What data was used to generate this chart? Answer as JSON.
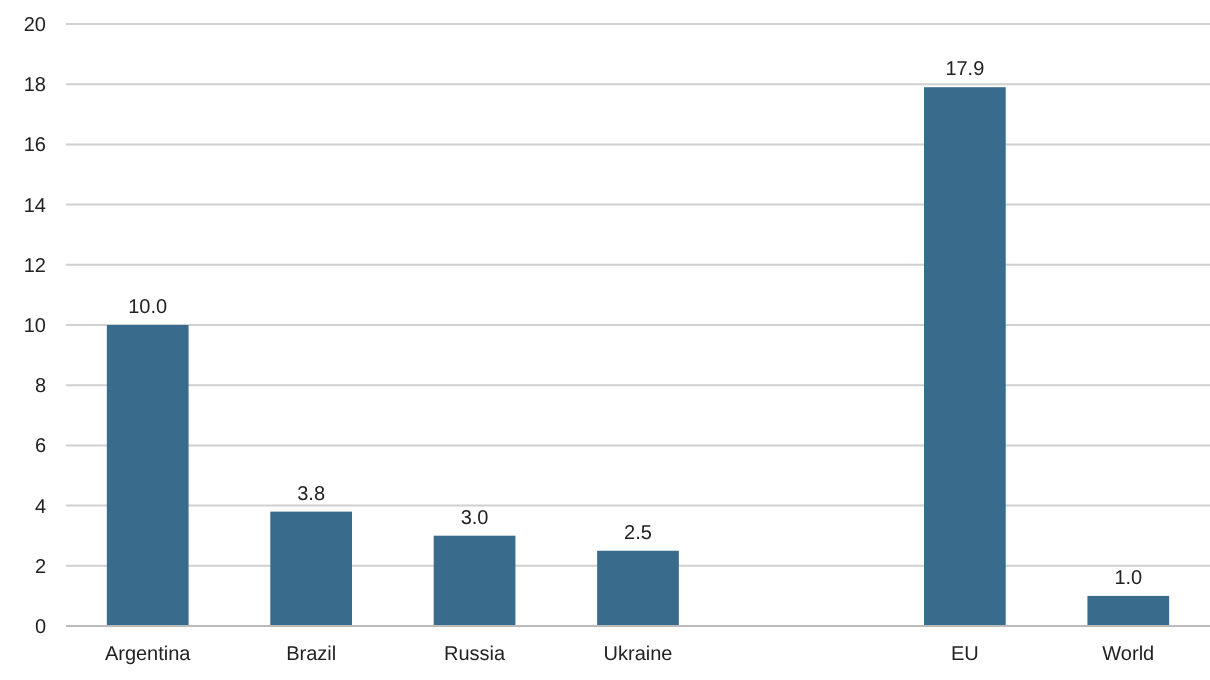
{
  "chart_data": {
    "type": "bar",
    "categories": [
      "Argentina",
      "Brazil",
      "Russia",
      "Ukraine",
      null,
      "EU",
      "World"
    ],
    "values": [
      10.0,
      3.8,
      3.0,
      2.5,
      null,
      17.9,
      1.0
    ],
    "value_labels": [
      "10.0",
      "3.8",
      "3.0",
      "2.5",
      null,
      "17.9",
      "1.0"
    ],
    "color": "#386b8c",
    "ylim": [
      0,
      20
    ],
    "yticks": [
      0,
      2,
      4,
      6,
      8,
      10,
      12,
      14,
      16,
      18,
      20
    ],
    "grid": "y"
  }
}
